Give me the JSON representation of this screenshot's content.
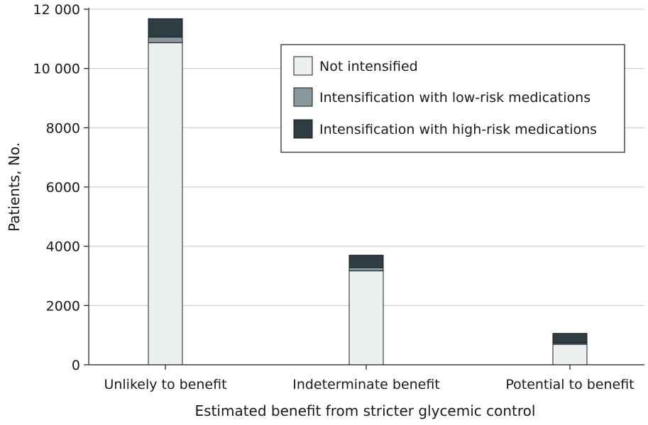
{
  "chart_data": {
    "type": "bar",
    "stacked": true,
    "title": "",
    "xlabel": "Estimated benefit from stricter glycemic control",
    "ylabel": "Patients, No.",
    "ylim": [
      0,
      12000
    ],
    "yticks": [
      0,
      2000,
      4000,
      6000,
      8000,
      10000,
      12000
    ],
    "ytick_labels": [
      "0",
      "2000",
      "4000",
      "6000",
      "8000",
      "10 000",
      "12 000"
    ],
    "grid": "horizontal",
    "legend_position": "top-right",
    "categories": [
      "Unlikely to benefit",
      "Indeterminate benefit",
      "Potential to benefit"
    ],
    "series": [
      {
        "name": "Not intensified",
        "color": "#edf0f1",
        "values": [
          10870,
          3170,
          690
        ]
      },
      {
        "name": "Intensification with low-risk medications",
        "color": "#87999f",
        "values": [
          190,
          110,
          40
        ]
      },
      {
        "name": "Intensification with high-risk medications",
        "color": "#2e3d44",
        "values": [
          620,
          420,
          330
        ]
      }
    ]
  }
}
